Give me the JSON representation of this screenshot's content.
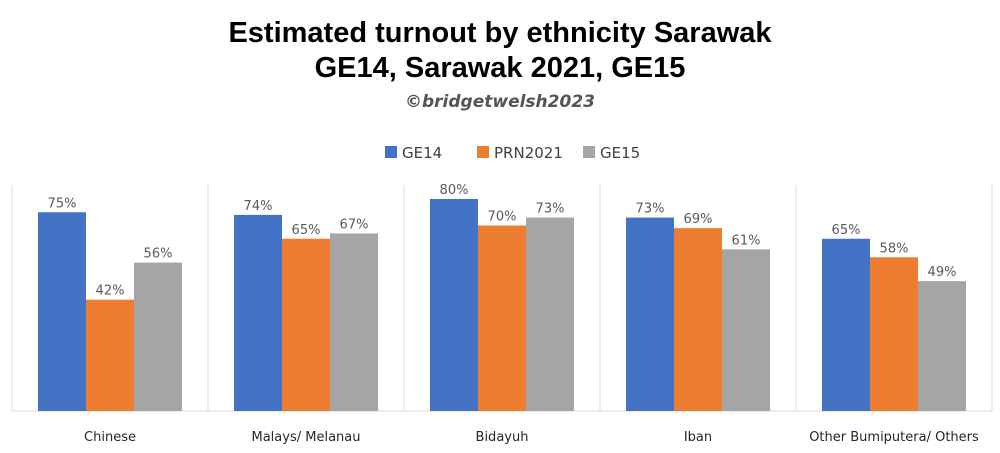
{
  "title_line1": "Estimated turnout by ethnicity Sarawak",
  "title_line2": "GE14, Sarawak 2021, GE15",
  "credit": "©bridgetwelsh2023",
  "chart_data": {
    "type": "bar",
    "categories": [
      "Chinese",
      "Malays/ Melanau",
      "Bidayuh",
      "Iban",
      "Other Bumiputera/ Others"
    ],
    "series": [
      {
        "name": "GE14",
        "color": "#4472C4",
        "values": [
          75,
          74,
          80,
          73,
          65
        ],
        "labels": [
          "75%",
          "74%",
          "80%",
          "73%",
          "65%"
        ]
      },
      {
        "name": "PRN2021",
        "color": "#ED7D31",
        "values": [
          42,
          65,
          70,
          69,
          58
        ],
        "labels": [
          "42%",
          "65%",
          "70%",
          "69%",
          "58%"
        ]
      },
      {
        "name": "GE15",
        "color": "#A5A5A5",
        "values": [
          56,
          67,
          73,
          61,
          49
        ],
        "labels": [
          "56%",
          "67%",
          "73%",
          "61%",
          "49%"
        ]
      }
    ],
    "ylim": [
      0,
      100
    ],
    "grid": false,
    "legend": "top-center",
    "xlabel": "",
    "ylabel": ""
  }
}
